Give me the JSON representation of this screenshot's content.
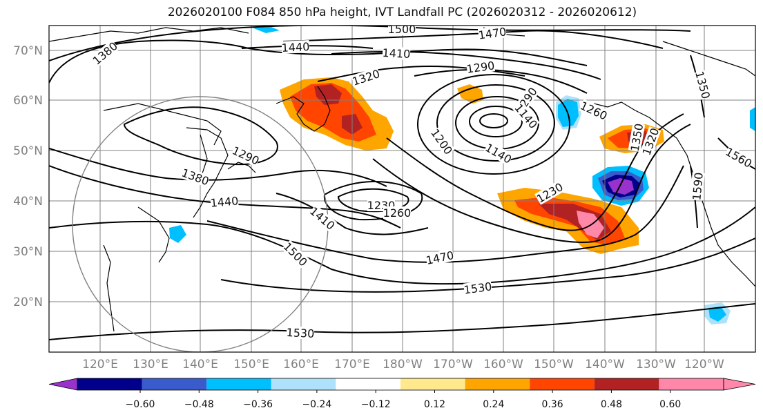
{
  "title": "2026020100 F084 850 hPa height, IVT Landfall PC (2026020312 - 2026020612)",
  "map": {
    "lat_labels": [
      "70°N",
      "60°N",
      "50°N",
      "40°N",
      "30°N",
      "20°N"
    ],
    "lon_labels": [
      "120°E",
      "130°E",
      "140°E",
      "150°E",
      "160°E",
      "170°E",
      "180°W",
      "170°W",
      "160°W",
      "150°W",
      "140°W",
      "130°W",
      "120°W"
    ],
    "contour_labels": [
      "1500",
      "1470",
      "1380",
      "1440",
      "1410",
      "1290",
      "1320",
      "1290",
      "1350",
      "1260",
      "1200",
      "1140",
      "1140",
      "1290",
      "1380",
      "1440",
      "1410",
      "1230",
      "1260",
      "1230",
      "1500",
      "1470",
      "1530",
      "1530",
      "1350",
      "1560",
      "1590",
      "1320"
    ]
  },
  "colorbar": {
    "ticks": [
      "−0.60",
      "−0.48",
      "−0.36",
      "−0.24",
      "−0.12",
      "0.12",
      "0.24",
      "0.36",
      "0.48",
      "0.60"
    ],
    "colors": [
      "#9932cc",
      "#00008b",
      "#3a5bcb",
      "#00bfff",
      "#aee2fb",
      "#ffffff",
      "#ffe98c",
      "#ffa500",
      "#ff4500",
      "#b22222",
      "#ff88aa",
      "#ff88aa"
    ]
  },
  "colors": {
    "contour": "#000000",
    "grid": "#808080",
    "coast": "#000000"
  }
}
